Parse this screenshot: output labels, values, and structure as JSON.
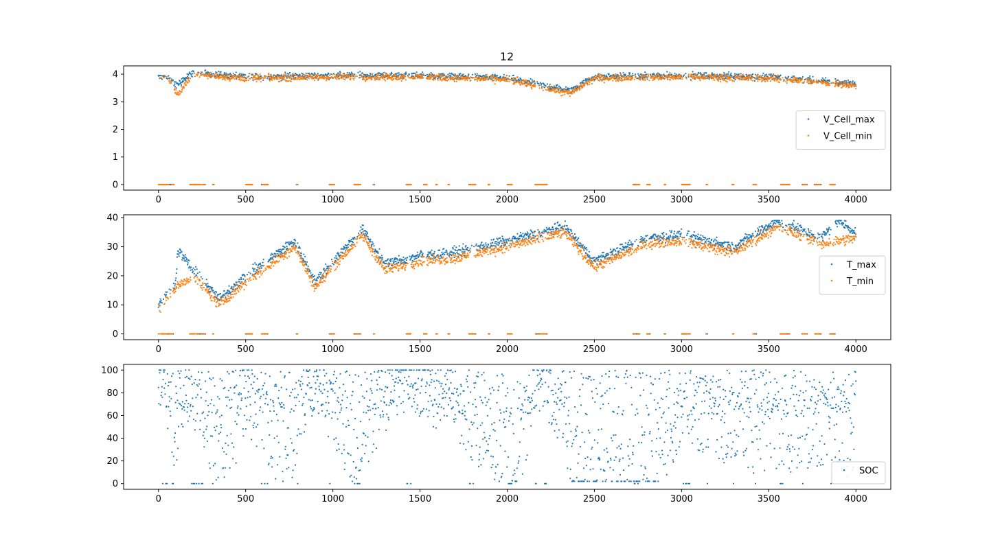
{
  "figure": {
    "title": "12"
  },
  "colors": {
    "series_a": "#1f77b4",
    "series_b": "#ff7f0e",
    "axes": "#000000",
    "legend_border": "#cccccc"
  },
  "chart_data": [
    {
      "type": "scatter",
      "title": "12",
      "xlabel": "",
      "ylabel": "",
      "xlim": [
        -200,
        4200
      ],
      "ylim": [
        -0.2,
        4.3
      ],
      "xticks": [
        0,
        500,
        1000,
        1500,
        2000,
        2500,
        3000,
        3500,
        4000
      ],
      "yticks": [
        0,
        1,
        2,
        3,
        4
      ],
      "grid": false,
      "legend_position": "center-right",
      "x_range": [
        0,
        4000
      ],
      "zero_runs": [
        [
          0,
          90
        ],
        [
          180,
          270
        ],
        [
          310,
          320
        ],
        [
          500,
          540
        ],
        [
          590,
          630
        ],
        [
          790,
          800
        ],
        [
          980,
          1010
        ],
        [
          1120,
          1160
        ],
        [
          1230,
          1240
        ],
        [
          1420,
          1450
        ],
        [
          1520,
          1540
        ],
        [
          1590,
          1600
        ],
        [
          1660,
          1670
        ],
        [
          1780,
          1820
        ],
        [
          1890,
          1900
        ],
        [
          2000,
          2030
        ],
        [
          2160,
          2230
        ],
        [
          2720,
          2760
        ],
        [
          2800,
          2820
        ],
        [
          2900,
          2910
        ],
        [
          3000,
          3050
        ],
        [
          3140,
          3150
        ],
        [
          3290,
          3300
        ],
        [
          3410,
          3430
        ],
        [
          3560,
          3620
        ],
        [
          3690,
          3720
        ],
        [
          3760,
          3800
        ],
        [
          3850,
          3880
        ]
      ],
      "series": [
        {
          "name": "V_Cell_max",
          "points": 4000,
          "min_value": 0,
          "max_value": 4.15,
          "sample": [
            [
              0,
              3.9
            ],
            [
              50,
              3.95
            ],
            [
              100,
              3.6
            ],
            [
              200,
              4.05
            ],
            [
              500,
              3.9
            ],
            [
              1000,
              3.95
            ],
            [
              1500,
              3.95
            ],
            [
              2000,
              3.85
            ],
            [
              2360,
              3.4
            ],
            [
              2500,
              3.9
            ],
            [
              3000,
              3.95
            ],
            [
              3500,
              3.9
            ],
            [
              4000,
              3.65
            ]
          ]
        },
        {
          "name": "V_Cell_min",
          "points": 4000,
          "min_value": 0,
          "max_value": 4.1,
          "sample": [
            [
              0,
              3.85
            ],
            [
              50,
              3.9
            ],
            [
              110,
              3.25
            ],
            [
              200,
              4.0
            ],
            [
              500,
              3.85
            ],
            [
              1000,
              3.9
            ],
            [
              1500,
              3.9
            ],
            [
              2000,
              3.8
            ],
            [
              2360,
              3.3
            ],
            [
              2500,
              3.85
            ],
            [
              3000,
              3.9
            ],
            [
              3500,
              3.85
            ],
            [
              4000,
              3.6
            ]
          ]
        }
      ]
    },
    {
      "type": "scatter",
      "title": "",
      "xlabel": "",
      "ylabel": "",
      "xlim": [
        -200,
        4200
      ],
      "ylim": [
        -2,
        41
      ],
      "xticks": [
        0,
        500,
        1000,
        1500,
        2000,
        2500,
        3000,
        3500,
        4000
      ],
      "yticks": [
        0,
        10,
        20,
        30,
        40
      ],
      "grid": false,
      "legend_position": "center-right",
      "x_range": [
        0,
        4000
      ],
      "series": [
        {
          "name": "T_max",
          "points": 4000,
          "min_value": 0,
          "max_value": 39,
          "sample": [
            [
              0,
              10
            ],
            [
              100,
              18
            ],
            [
              110,
              29
            ],
            [
              200,
              22
            ],
            [
              350,
              12
            ],
            [
              500,
              20
            ],
            [
              600,
              24
            ],
            [
              780,
              32
            ],
            [
              900,
              18
            ],
            [
              1000,
              25
            ],
            [
              1170,
              36
            ],
            [
              1300,
              24
            ],
            [
              1500,
              27
            ],
            [
              1700,
              28
            ],
            [
              2000,
              32
            ],
            [
              2330,
              37
            ],
            [
              2500,
              25
            ],
            [
              2800,
              33
            ],
            [
              3000,
              34
            ],
            [
              3300,
              30
            ],
            [
              3550,
              39
            ],
            [
              3800,
              33
            ],
            [
              3900,
              39
            ],
            [
              4000,
              35
            ]
          ]
        },
        {
          "name": "T_min",
          "points": 4000,
          "min_value": 0,
          "max_value": 37,
          "sample": [
            [
              0,
              8
            ],
            [
              100,
              16
            ],
            [
              200,
              20
            ],
            [
              350,
              10
            ],
            [
              500,
              18
            ],
            [
              600,
              22
            ],
            [
              780,
              30
            ],
            [
              900,
              16
            ],
            [
              1000,
              23
            ],
            [
              1170,
              34
            ],
            [
              1300,
              22
            ],
            [
              1500,
              25
            ],
            [
              1700,
              26
            ],
            [
              2000,
              30
            ],
            [
              2330,
              35
            ],
            [
              2500,
              23
            ],
            [
              2800,
              31
            ],
            [
              3000,
              32
            ],
            [
              3300,
              28
            ],
            [
              3550,
              37
            ],
            [
              3800,
              31
            ],
            [
              4000,
              33
            ]
          ]
        }
      ]
    },
    {
      "type": "scatter",
      "title": "",
      "xlabel": "",
      "ylabel": "",
      "xlim": [
        -200,
        4200
      ],
      "ylim": [
        -5,
        105
      ],
      "xticks": [
        0,
        500,
        1000,
        1500,
        2000,
        2500,
        3000,
        3500,
        4000
      ],
      "yticks": [
        0,
        20,
        40,
        60,
        80,
        100
      ],
      "grid": false,
      "legend_position": "bottom-right",
      "x_range": [
        0,
        4000
      ],
      "series": [
        {
          "name": "SOC",
          "points": 4000,
          "min_value": 0,
          "max_value": 100,
          "sample": [
            [
              0,
              100
            ],
            [
              100,
              30
            ],
            [
              150,
              85
            ],
            [
              380,
              10
            ],
            [
              500,
              70
            ],
            [
              730,
              10
            ],
            [
              900,
              90
            ],
            [
              1100,
              15
            ],
            [
              1400,
              95
            ],
            [
              2050,
              10
            ],
            [
              2200,
              90
            ],
            [
              2400,
              5
            ],
            [
              2530,
              5
            ],
            [
              2850,
              5
            ],
            [
              3000,
              60
            ],
            [
              3400,
              30
            ],
            [
              3900,
              40
            ],
            [
              4000,
              20
            ]
          ]
        }
      ]
    }
  ]
}
